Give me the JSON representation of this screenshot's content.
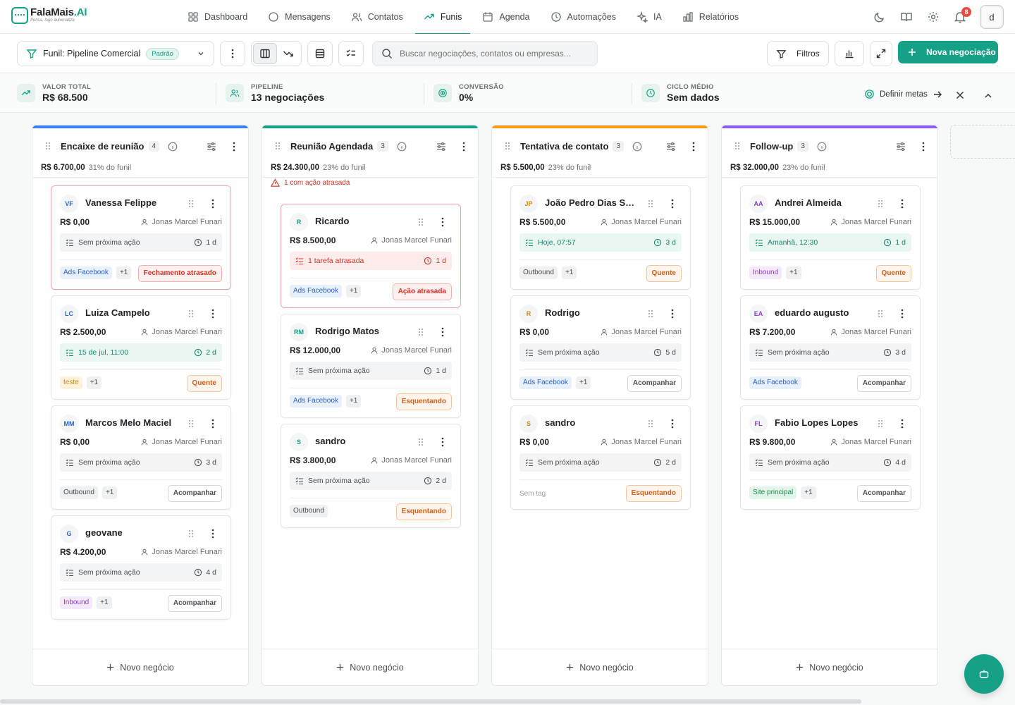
{
  "brand": {
    "name_a": "FalaMais",
    "name_b": ".AI",
    "tagline": "Pensa, logo automatiza"
  },
  "colors": {
    "accent": "#16a085",
    "danger": "#d93025",
    "col1": "#3b82f6",
    "col2": "#16a085",
    "col3": "#f39c12",
    "col4": "#8b5cf6"
  },
  "nav": [
    {
      "label": "Dashboard",
      "icon": "grid-icon"
    },
    {
      "label": "Mensagens",
      "icon": "chat-icon"
    },
    {
      "label": "Contatos",
      "icon": "users-icon"
    },
    {
      "label": "Funis",
      "icon": "trend-icon",
      "active": true
    },
    {
      "label": "Agenda",
      "icon": "calendar-icon"
    },
    {
      "label": "Automações",
      "icon": "clock-icon"
    },
    {
      "label": "IA",
      "icon": "sparkle-icon"
    },
    {
      "label": "Relatórios",
      "icon": "bar-chart-icon"
    }
  ],
  "top_right": {
    "notifications": "8",
    "avatar": "d"
  },
  "toolbar": {
    "funnel_label": "Funil: Pipeline Comercial",
    "funnel_badge": "Padrão",
    "search_placeholder": "Buscar negociações, contatos ou empresas...",
    "filters": "Filtros",
    "new_deal": "Nova negociação"
  },
  "stats": [
    {
      "label": "Valor total",
      "value": "R$ 68.500"
    },
    {
      "label": "Pipeline",
      "value": "13 negociações"
    },
    {
      "label": "Conversão",
      "value": "0%"
    },
    {
      "label": "Ciclo médio",
      "value": "Sem dados"
    }
  ],
  "stats_action": "Definir metas",
  "new_business": "Novo negócio",
  "columns": [
    {
      "title": "Encaixe de reunião",
      "count": "4",
      "sum": "R$ 6.700,00",
      "pct": "31% do funil",
      "warn": "",
      "cards": [
        {
          "initials": "VF",
          "name": "Vanessa Felippe",
          "value": "R$ 0,00",
          "owner": "Jonas Marcel Funari",
          "task": "Sem próxima ação",
          "days": "1 d",
          "task_type": "none",
          "tags": [
            {
              "text": "Ads Facebook",
              "style": "fb"
            },
            {
              "text": "+1",
              "style": "plus"
            }
          ],
          "status": "Fechamento atrasado",
          "status_type": "red",
          "alert": true
        },
        {
          "initials": "LC",
          "name": "Luiza Campelo",
          "value": "R$ 2.500,00",
          "owner": "Jonas Marcel Funari",
          "task": "15 de jul, 11:00",
          "days": "2 d",
          "task_type": "green",
          "tags": [
            {
              "text": "teste",
              "style": "yellow"
            },
            {
              "text": "+1",
              "style": "plus"
            }
          ],
          "status": "Quente",
          "status_type": "orange"
        },
        {
          "initials": "MM",
          "name": "Marcos Melo Maciel",
          "value": "R$ 0,00",
          "owner": "Jonas Marcel Funari",
          "task": "Sem próxima ação",
          "days": "3 d",
          "task_type": "none",
          "tags": [
            {
              "text": "Outbound",
              "style": "gray"
            },
            {
              "text": "+1",
              "style": "plus"
            }
          ],
          "status": "Acompanhar",
          "status_type": "gray"
        },
        {
          "initials": "G",
          "name": "geovane",
          "value": "R$ 4.200,00",
          "owner": "Jonas Marcel Funari",
          "task": "Sem próxima ação",
          "days": "4 d",
          "task_type": "none",
          "tags": [
            {
              "text": "Inbound",
              "style": "purple"
            },
            {
              "text": "+1",
              "style": "plus"
            }
          ],
          "status": "Acompanhar",
          "status_type": "gray"
        }
      ]
    },
    {
      "title": "Reunião Agendada",
      "count": "3",
      "sum": "R$ 24.300,00",
      "pct": "23% do funil",
      "warn": "1 com ação atrasada",
      "cards": [
        {
          "initials": "R",
          "name": "Ricardo",
          "value": "R$ 8.500,00",
          "owner": "Jonas Marcel Funari",
          "task": "1 tarefa atrasada",
          "days": "1 d",
          "task_type": "red",
          "tags": [
            {
              "text": "Ads Facebook",
              "style": "fb"
            },
            {
              "text": "+1",
              "style": "plus"
            }
          ],
          "status": "Ação atrasada",
          "status_type": "red",
          "alert": true
        },
        {
          "initials": "RM",
          "name": "Rodrigo Matos",
          "value": "R$ 12.000,00",
          "owner": "Jonas Marcel Funari",
          "task": "Sem próxima ação",
          "days": "1 d",
          "task_type": "none",
          "tags": [
            {
              "text": "Ads Facebook",
              "style": "fb"
            },
            {
              "text": "+1",
              "style": "plus"
            }
          ],
          "status": "Esquentando",
          "status_type": "orange"
        },
        {
          "initials": "S",
          "name": "sandro",
          "value": "R$ 3.800,00",
          "owner": "Jonas Marcel Funari",
          "task": "Sem próxima ação",
          "days": "2 d",
          "task_type": "none",
          "tags": [
            {
              "text": "Outbound",
              "style": "gray"
            }
          ],
          "status": "Esquentando",
          "status_type": "orange"
        }
      ]
    },
    {
      "title": "Tentativa de contato",
      "count": "3",
      "sum": "R$ 5.500,00",
      "pct": "23% do funil",
      "warn": "",
      "cards": [
        {
          "initials": "JP",
          "name": "João Pedro Dias Soares",
          "value": "R$ 5.500,00",
          "owner": "Jonas Marcel Funari",
          "task": "Hoje, 07:57",
          "days": "3 d",
          "task_type": "green",
          "tags": [
            {
              "text": "Outbound",
              "style": "gray"
            },
            {
              "text": "+1",
              "style": "plus"
            }
          ],
          "status": "Quente",
          "status_type": "orange"
        },
        {
          "initials": "R",
          "name": "Rodrigo",
          "value": "R$ 0,00",
          "owner": "Jonas Marcel Funari",
          "task": "Sem próxima ação",
          "days": "5 d",
          "task_type": "none",
          "tags": [
            {
              "text": "Ads Facebook",
              "style": "fb"
            },
            {
              "text": "+1",
              "style": "plus"
            }
          ],
          "status": "Acompanhar",
          "status_type": "gray"
        },
        {
          "initials": "S",
          "name": "sandro",
          "value": "R$ 0,00",
          "owner": "Jonas Marcel Funari",
          "task": "Sem próxima ação",
          "days": "2 d",
          "task_type": "none",
          "tags": [],
          "no_tag": "Sem tag",
          "status": "Esquentando",
          "status_type": "orange"
        }
      ]
    },
    {
      "title": "Follow-up",
      "count": "3",
      "sum": "R$ 32.000,00",
      "pct": "23% do funil",
      "warn": "",
      "cards": [
        {
          "initials": "AA",
          "name": "Andrei Almeida",
          "value": "R$ 15.000,00",
          "owner": "Jonas Marcel Funari",
          "task": "Amanhã, 12:30",
          "days": "1 d",
          "task_type": "green",
          "tags": [
            {
              "text": "Inbound",
              "style": "purple"
            },
            {
              "text": "+1",
              "style": "plus"
            }
          ],
          "status": "Quente",
          "status_type": "orange"
        },
        {
          "initials": "EA",
          "name": "eduardo augusto",
          "value": "R$ 7.200,00",
          "owner": "Jonas Marcel Funari",
          "task": "Sem próxima ação",
          "days": "3 d",
          "task_type": "none",
          "tags": [
            {
              "text": "Ads Facebook",
              "style": "fb"
            }
          ],
          "status": "Acompanhar",
          "status_type": "gray"
        },
        {
          "initials": "FL",
          "name": "Fabio Lopes Lopes",
          "value": "R$ 9.800,00",
          "owner": "Jonas Marcel Funari",
          "task": "Sem próxima ação",
          "days": "4 d",
          "task_type": "none",
          "tags": [
            {
              "text": "Site principal",
              "style": "green"
            },
            {
              "text": "+1",
              "style": "plus"
            }
          ],
          "status": "Acompanhar",
          "status_type": "gray"
        }
      ]
    }
  ]
}
